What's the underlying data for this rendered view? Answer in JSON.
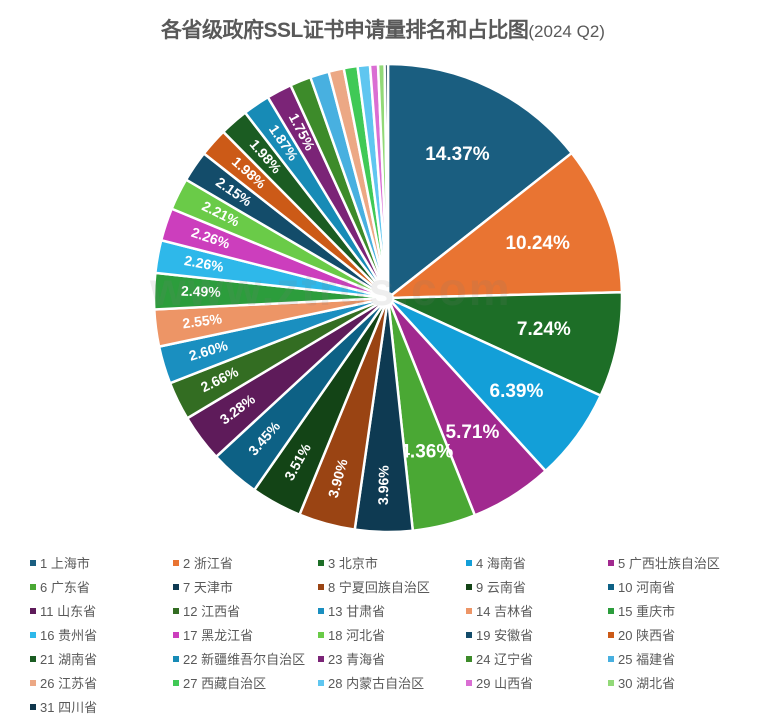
{
  "title": {
    "main": "各省级政府SSL证书申请量排名和占比图",
    "sub": "(2024 Q2)"
  },
  "watermark": "www.ztrus.com",
  "chart_data": {
    "type": "pie",
    "title": "各省级政府SSL证书申请量排名和占比图(2024 Q2)",
    "legend_position": "bottom",
    "start_angle_deg": 0,
    "direction": "clockwise",
    "categories": [
      "1 上海市",
      "2 浙江省",
      "3 北京市",
      "4 海南省",
      "5 广西壮族自治区",
      "6 广东省",
      "7 天津市",
      "8 宁夏回族自治区",
      "9 云南省",
      "10 河南省",
      "11 山东省",
      "12 江西省",
      "13 甘肃省",
      "14 吉林省",
      "15 重庆市",
      "16 贵州省",
      "17 黑龙江省",
      "18 河北省",
      "19 安徽省",
      "20 陕西省",
      "21 湖南省",
      "22 新疆维吾尔自治区",
      "23 青海省",
      "24 辽宁省",
      "25 福建省",
      "26 江苏省",
      "27 西藏自治区",
      "28 内蒙古自治区",
      "29 山西省",
      "30 湖北省",
      "31 四川省"
    ],
    "values": [
      14.37,
      10.24,
      7.24,
      6.39,
      5.71,
      4.36,
      3.96,
      3.9,
      3.51,
      3.45,
      3.28,
      2.66,
      2.6,
      2.55,
      2.49,
      2.26,
      2.26,
      2.21,
      2.15,
      1.98,
      1.98,
      1.87,
      1.75,
      1.45,
      1.3,
      1.05,
      0.95,
      0.85,
      0.55,
      0.45,
      0.23
    ],
    "labels": [
      "14.37%",
      "10.24%",
      "7.24%",
      "6.39%",
      "5.71%",
      "4.36%",
      "3.96%",
      "3.90%",
      "3.51%",
      "3.45%",
      "3.28%",
      "2.66%",
      "2.60%",
      "2.55%",
      "2.49%",
      "2.26%",
      "2.26%",
      "2.21%",
      "2.15%",
      "1.98%",
      "1.98%",
      "1.87%",
      "1.75%",
      "",
      "",
      "",
      "",
      "",
      "",
      "",
      ""
    ],
    "colors": [
      "#1a5e80",
      "#e97432",
      "#1d6e27",
      "#139fd8",
      "#a1298f",
      "#4aa834",
      "#0e3a52",
      "#9a4413",
      "#134416",
      "#0d6185",
      "#5e1b5a",
      "#336d22",
      "#1a8fc0",
      "#ed9566",
      "#2c9d3c",
      "#2eb8ea",
      "#cc3ebd",
      "#6acb48",
      "#134c6a",
      "#cc5a17",
      "#1b5c22",
      "#178bb6",
      "#7b2477",
      "#3d8b2a",
      "#48b0e0",
      "#eca885",
      "#40c956",
      "#5fc6f0",
      "#da6ed3",
      "#92d978",
      "#10364c"
    ]
  }
}
